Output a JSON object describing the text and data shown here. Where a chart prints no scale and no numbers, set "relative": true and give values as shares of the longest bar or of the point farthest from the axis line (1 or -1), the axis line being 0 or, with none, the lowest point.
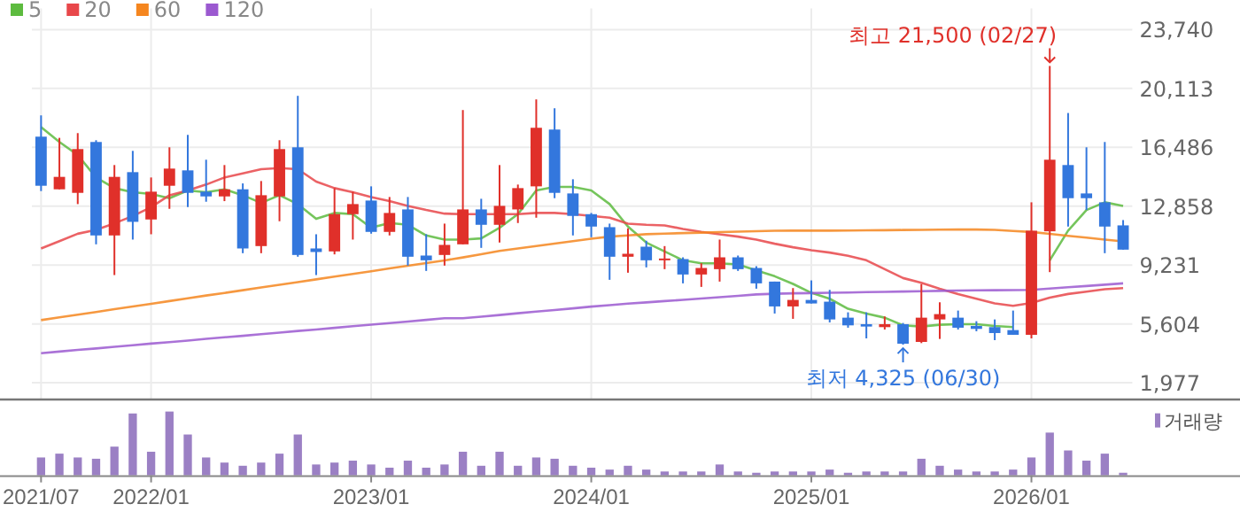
{
  "chart_data": [
    {
      "type": "candlestick",
      "categories": [
        "2021/07",
        null,
        null,
        null,
        null,
        null,
        "2022/01",
        null,
        null,
        null,
        null,
        null,
        null,
        null,
        null,
        null,
        null,
        null,
        "2023/01",
        null,
        null,
        null,
        null,
        null,
        null,
        null,
        null,
        null,
        null,
        null,
        "2024/01",
        null,
        null,
        null,
        null,
        null,
        null,
        null,
        null,
        null,
        null,
        null,
        "2025/01",
        null,
        null,
        null,
        null,
        null,
        null,
        null,
        null,
        null,
        null,
        null,
        "2026/01",
        null,
        null,
        null,
        null,
        null
      ],
      "ohlc": [
        [
          17142,
          18454,
          13789,
          14117
        ],
        [
          13898,
          17069,
          13898,
          14664
        ],
        [
          13679,
          17361,
          12987,
          16377
        ],
        [
          16814,
          16923,
          10508,
          11055
        ],
        [
          11055,
          15393,
          8613,
          14664
        ],
        [
          14955,
          16267,
          10800,
          11893
        ],
        [
          12039,
          14627,
          11128,
          13752
        ],
        [
          14117,
          16486,
          12695,
          15174
        ],
        [
          15065,
          17252,
          12804,
          13679
        ],
        [
          13752,
          15721,
          13132,
          13460
        ],
        [
          13460,
          15393,
          13169,
          13898
        ],
        [
          13898,
          14262,
          9961,
          10253
        ],
        [
          10399,
          14408,
          9961,
          13533
        ],
        [
          13460,
          16923,
          11930,
          16377
        ],
        [
          16486,
          19657,
          9743,
          9852
        ],
        [
          10253,
          11128,
          8613,
          10034
        ],
        [
          10071,
          13971,
          9888,
          12366
        ],
        [
          12366,
          13752,
          10800,
          12987
        ],
        [
          13205,
          14080,
          11164,
          11274
        ],
        [
          11274,
          13424,
          11055,
          12440
        ],
        [
          12658,
          13424,
          9196,
          9743
        ],
        [
          9816,
          11128,
          8868,
          9524
        ],
        [
          9852,
          11784,
          9196,
          10472
        ],
        [
          10508,
          18782,
          10508,
          12658
        ],
        [
          12658,
          13314,
          10289,
          11711
        ],
        [
          11711,
          15393,
          10618,
          12877
        ],
        [
          12658,
          14190,
          11820,
          13971
        ],
        [
          14080,
          19438,
          12148,
          17689
        ],
        [
          17580,
          18892,
          13351,
          13679
        ],
        [
          13643,
          14517,
          11055,
          12258
        ],
        [
          12366,
          12440,
          10946,
          11602
        ],
        [
          11565,
          11784,
          8321,
          9743
        ],
        [
          9743,
          11492,
          8758,
          9925
        ],
        [
          10362,
          10727,
          9087,
          9524
        ],
        [
          9524,
          10399,
          8977,
          9633
        ],
        [
          9597,
          9706,
          8102,
          8649
        ],
        [
          8649,
          9342,
          7884,
          9050
        ],
        [
          8977,
          10800,
          8211,
          9706
        ],
        [
          9706,
          9816,
          8868,
          8977
        ],
        [
          9050,
          9160,
          7774,
          8102
        ],
        [
          8211,
          8211,
          6243,
          6681
        ],
        [
          6681,
          7811,
          5916,
          7081
        ],
        [
          7081,
          8285,
          6863,
          6863
        ],
        [
          6973,
          7701,
          5697,
          5879
        ],
        [
          5988,
          6317,
          5369,
          5514
        ],
        [
          5587,
          6317,
          4713,
          5441
        ],
        [
          5405,
          6061,
          5259,
          5587
        ],
        [
          5587,
          5660,
          4325,
          4384
        ],
        [
          4494,
          8066,
          4421,
          5988
        ],
        [
          5879,
          6936,
          4677,
          6207
        ],
        [
          5988,
          6426,
          5259,
          5369
        ],
        [
          5478,
          5770,
          5150,
          5296
        ],
        [
          5405,
          5879,
          4604,
          5041
        ],
        [
          5223,
          6426,
          4932,
          4932
        ],
        [
          4932,
          13096,
          4713,
          11347
        ],
        [
          11310,
          21500,
          8795,
          15721
        ],
        [
          15393,
          18600,
          11602,
          13351
        ],
        [
          13643,
          16486,
          12622,
          13351
        ],
        [
          13096,
          16814,
          9961,
          11602
        ],
        [
          11675,
          12003,
          10180,
          10180
        ]
      ],
      "series": [
        {
          "name": "5",
          "type": "line",
          "color": "#5dbb3f",
          "values": [
            17725,
            16814,
            16012,
            14627,
            13971,
            13716,
            13606,
            13351,
            13825,
            13716,
            13898,
            13533,
            13059,
            13533,
            12987,
            12075,
            12440,
            12366,
            11529,
            11820,
            11711,
            11055,
            10800,
            10800,
            10873,
            11529,
            12366,
            13825,
            14044,
            14044,
            13825,
            12987,
            11602,
            10618,
            10071,
            9524,
            9342,
            9342,
            9269,
            8904,
            8540,
            8066,
            7519,
            7154,
            6535,
            6243,
            5988,
            5514,
            5441,
            5551,
            5587,
            5587,
            5478,
            5405,
            null,
            9524,
            11347,
            12622,
            13096,
            12877
          ]
        },
        {
          "name": "20",
          "type": "line",
          "color": "#e8474a",
          "values": [
            10250,
            10700,
            11160,
            11400,
            11800,
            12250,
            12800,
            13533,
            13825,
            14190,
            14627,
            14880,
            15137,
            15210,
            15137,
            14372,
            13971,
            13716,
            13424,
            13169,
            12877,
            12622,
            12400,
            12366,
            12366,
            12366,
            12366,
            12440,
            12440,
            12366,
            12258,
            12148,
            11784,
            11711,
            11675,
            11456,
            11274,
            11128,
            10982,
            10800,
            10545,
            10326,
            10144,
            10000,
            9800,
            9524,
            8977,
            8430,
            8139,
            7774,
            7446,
            7154,
            6863,
            6717,
            6900,
            7227,
            7446,
            7592,
            7738,
            7811
          ]
        },
        {
          "name": "60",
          "type": "line",
          "color": "#f5861f",
          "values": [
            5840,
            6010,
            6170,
            6340,
            6510,
            6680,
            6840,
            7010,
            7180,
            7350,
            7510,
            7680,
            7850,
            8010,
            8180,
            8350,
            8520,
            8680,
            8850,
            9020,
            9190,
            9350,
            9520,
            9700,
            9900,
            10100,
            10250,
            10400,
            10550,
            10700,
            10850,
            10980,
            11060,
            11130,
            11170,
            11200,
            11230,
            11260,
            11290,
            11320,
            11340,
            11350,
            11350,
            11350,
            11360,
            11370,
            11380,
            11390,
            11400,
            11410,
            11420,
            11420,
            11400,
            11330,
            11270,
            11150,
            11030,
            10920,
            10800,
            10690
          ]
        },
        {
          "name": "120",
          "type": "line",
          "color": "#9b59d0",
          "values": [
            3800,
            3900,
            4000,
            4090,
            4190,
            4290,
            4390,
            4480,
            4580,
            4680,
            4780,
            4870,
            4970,
            5070,
            5170,
            5260,
            5360,
            5460,
            5560,
            5650,
            5750,
            5850,
            5950,
            5950,
            6050,
            6150,
            6260,
            6360,
            6460,
            6560,
            6670,
            6760,
            6850,
            6930,
            7010,
            7090,
            7170,
            7250,
            7330,
            7420,
            7460,
            7490,
            7500,
            7520,
            7540,
            7560,
            7580,
            7600,
            7620,
            7640,
            7660,
            7670,
            7680,
            7690,
            7700,
            7780,
            7860,
            7940,
            8020,
            8100
          ]
        }
      ],
      "ylim": [
        1000,
        23740
      ],
      "yticks": [
        {
          "value": 1977,
          "label": "1,977"
        },
        {
          "value": 5604,
          "label": "5,604"
        },
        {
          "value": 9231,
          "label": "9,231"
        },
        {
          "value": 12858,
          "label": "12,858"
        },
        {
          "value": 16486,
          "label": "16,486"
        },
        {
          "value": 20113,
          "label": "20,113"
        },
        {
          "value": 23740,
          "label": "23,740"
        }
      ],
      "grid": true,
      "legend": "top left",
      "tick_labels": "y",
      "annotations": [
        "최고 21,500 (02/27)",
        "최저 4,325 (06/30)"
      ]
    },
    {
      "type": "bar",
      "relative": true,
      "categories": [
        "2021/07",
        null,
        null,
        null,
        null,
        null,
        "2022/01",
        null,
        null,
        null,
        null,
        null,
        null,
        null,
        null,
        null,
        null,
        null,
        "2023/01",
        null,
        null,
        null,
        null,
        null,
        null,
        null,
        null,
        null,
        null,
        null,
        "2024/01",
        null,
        null,
        null,
        null,
        null,
        null,
        null,
        null,
        null,
        null,
        null,
        "2025/01",
        null,
        null,
        null,
        null,
        null,
        null,
        null,
        null,
        null,
        null,
        null,
        "2026/01",
        null,
        null,
        null,
        null,
        null
      ],
      "series": [
        {
          "name": "거래량",
          "color": "#9b80c4",
          "values": [
            0.28,
            0.34,
            0.28,
            0.26,
            0.45,
            0.97,
            0.37,
            1,
            0.64,
            0.28,
            0.2,
            0.15,
            0.2,
            0.34,
            0.64,
            0.17,
            0.2,
            0.23,
            0.17,
            0.12,
            0.23,
            0.12,
            0.17,
            0.37,
            0.15,
            0.37,
            0.15,
            0.28,
            0.26,
            0.15,
            0.12,
            0.09,
            0.15,
            0.09,
            0.06,
            0.06,
            0.06,
            0.17,
            0.06,
            0.04,
            0.06,
            0.06,
            0.06,
            0.09,
            0.04,
            0.06,
            0.06,
            0.06,
            0.26,
            0.15,
            0.09,
            0.06,
            0.06,
            0.09,
            0.28,
            0.67,
            0.39,
            0.23,
            0.34,
            0.04
          ]
        }
      ],
      "legend": "top right",
      "tick_labels": "x"
    }
  ]
}
